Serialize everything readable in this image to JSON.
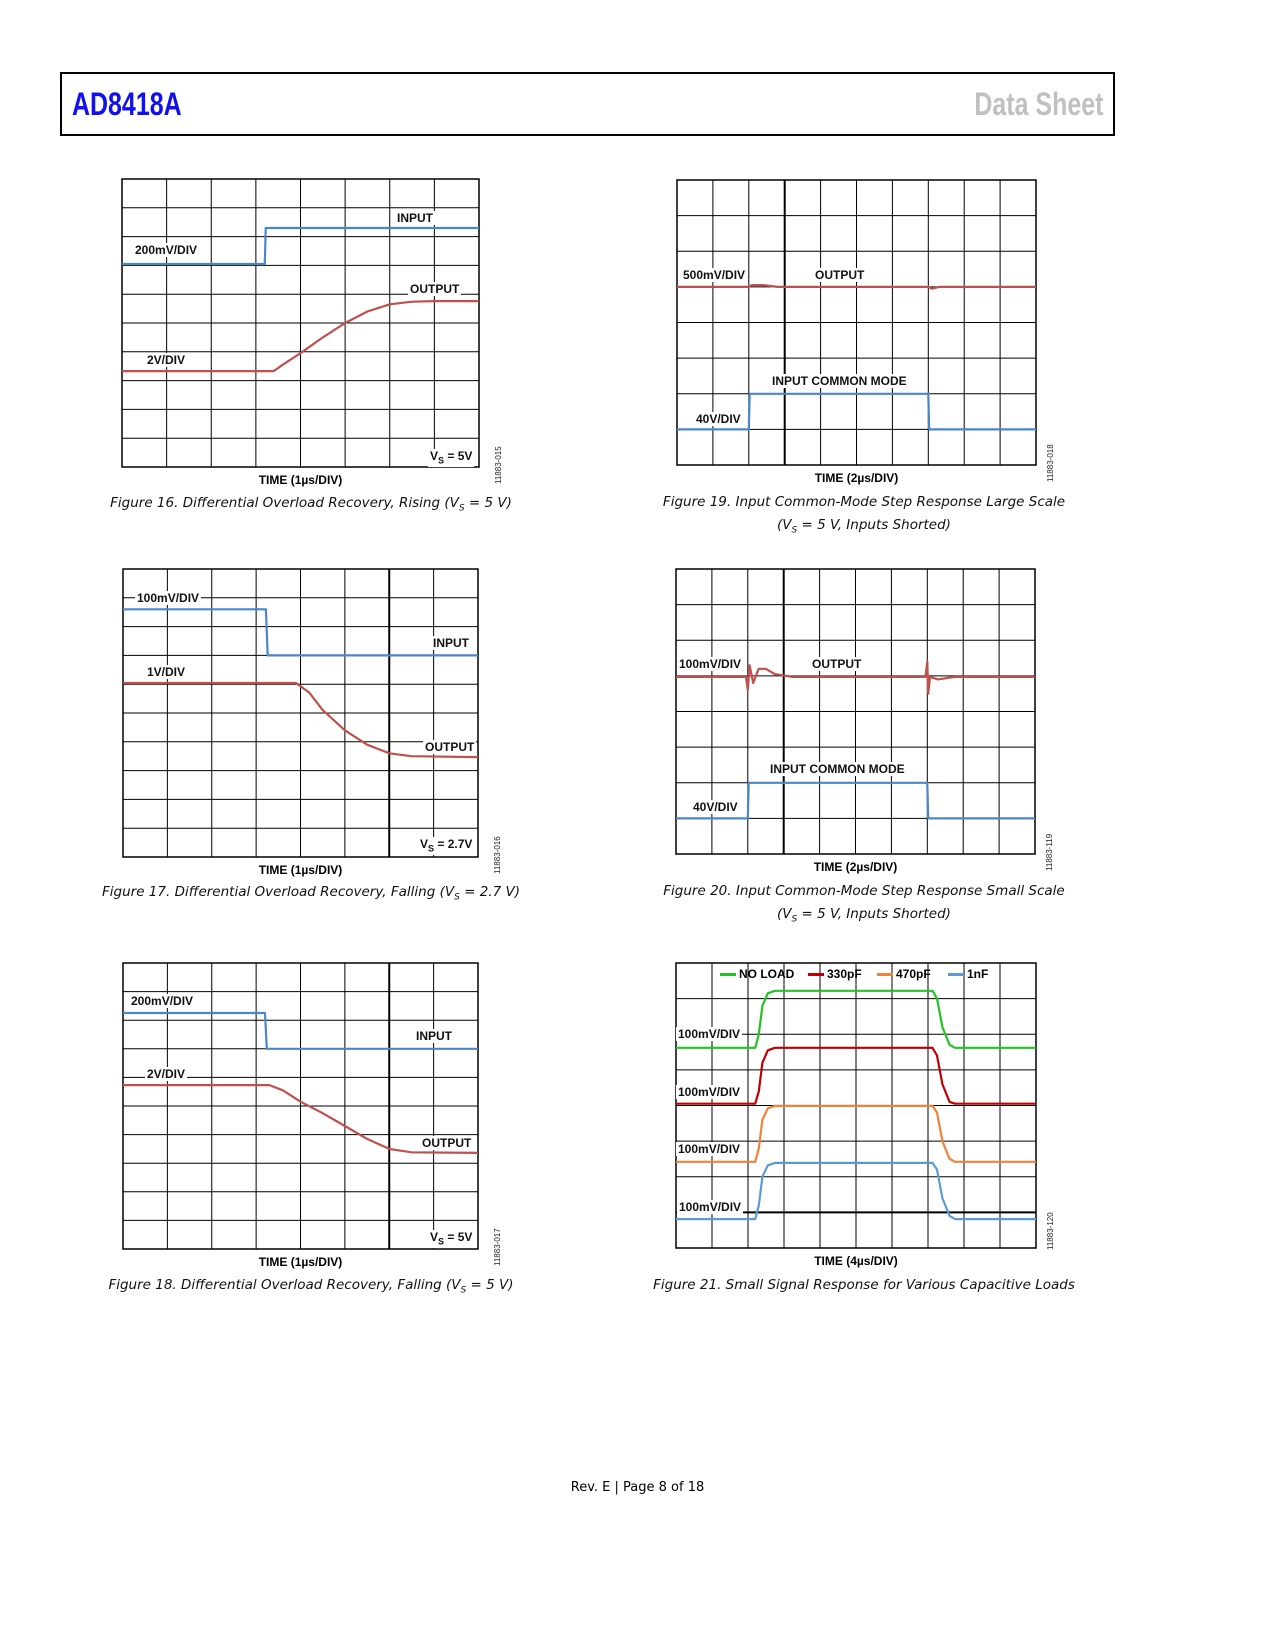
{
  "header": {
    "part_number": "AD8418A",
    "doc_type": "Data Sheet"
  },
  "footer": {
    "text": "Rev. E | Page 8 of 18"
  },
  "figures": [
    {
      "id": "11883-015",
      "caption": {
        "pre": "Figure 16. Differential Overload Recovery, Rising (V",
        "sub": "S",
        "post": " = 5 V)"
      },
      "caption2": null,
      "xlabel": "TIME (1µs/DIV)",
      "time_per_div_us": 1,
      "divisions": {
        "x": 8,
        "y": 10
      },
      "labels": [
        "INPUT",
        "200mV/DIV",
        "OUTPUT",
        "2V/DIV"
      ],
      "vs": {
        "main": "V",
        "sub": "S",
        "rest": " = 5V"
      },
      "traces": [
        {
          "name": "INPUT",
          "scale": "200mV/DIV",
          "color": "#4a86c8",
          "points": [
            [
              0,
              7.05
            ],
            [
              3.2,
              7.05
            ],
            [
              3.22,
              8.3
            ],
            [
              8,
              8.3
            ]
          ]
        },
        {
          "name": "OUTPUT",
          "scale": "2V/DIV",
          "color": "#c0504d",
          "points": [
            [
              0,
              3.33
            ],
            [
              3.4,
              3.33
            ],
            [
              3.6,
              3.55
            ],
            [
              4,
              3.95
            ],
            [
              4.5,
              4.5
            ],
            [
              5,
              5.0
            ],
            [
              5.5,
              5.4
            ],
            [
              6,
              5.65
            ],
            [
              6.5,
              5.74
            ],
            [
              7,
              5.76
            ],
            [
              8,
              5.76
            ]
          ]
        }
      ]
    },
    {
      "id": "11883-016",
      "caption": {
        "pre": "Figure 17. Differential Overload Recovery, Falling (V",
        "sub": "S",
        "post": " = 2.7 V)"
      },
      "caption2": null,
      "xlabel": "TIME (1µs/DIV)",
      "time_per_div_us": 1,
      "divisions": {
        "x": 8,
        "y": 10
      },
      "labels": [
        "100mV/DIV",
        "INPUT",
        "1V/DIV",
        "OUTPUT"
      ],
      "vs": {
        "main": "V",
        "sub": "S",
        "rest": " = 2.7V"
      },
      "traces": [
        {
          "name": "INPUT",
          "scale": "100mV/DIV",
          "color": "#4a86c8",
          "points": [
            [
              0,
              8.6
            ],
            [
              3.22,
              8.6
            ],
            [
              3.26,
              7.0
            ],
            [
              8,
              7.0
            ]
          ]
        },
        {
          "name": "OUTPUT",
          "scale": "1V/DIV",
          "color": "#c0504d",
          "points": [
            [
              0,
              6.04
            ],
            [
              3.9,
              6.04
            ],
            [
              4.2,
              5.7
            ],
            [
              4.5,
              5.1
            ],
            [
              5,
              4.4
            ],
            [
              5.5,
              3.9
            ],
            [
              6,
              3.6
            ],
            [
              6.5,
              3.5
            ],
            [
              8,
              3.47
            ]
          ]
        }
      ]
    },
    {
      "id": "11883-017",
      "caption": {
        "pre": "Figure 18. Differential Overload Recovery, Falling (V",
        "sub": "S",
        "post": " = 5 V)"
      },
      "caption2": null,
      "xlabel": "TIME (1µs/DIV)",
      "time_per_div_us": 1,
      "divisions": {
        "x": 8,
        "y": 10
      },
      "labels": [
        "200mV/DIV",
        "INPUT",
        "2V/DIV",
        "OUTPUT"
      ],
      "vs": {
        "main": "V",
        "sub": "S",
        "rest": " = 5V"
      },
      "traces": [
        {
          "name": "INPUT",
          "scale": "200mV/DIV",
          "color": "#4a86c8",
          "points": [
            [
              0,
              8.25
            ],
            [
              3.2,
              8.25
            ],
            [
              3.24,
              7.0
            ],
            [
              8,
              7.0
            ]
          ]
        },
        {
          "name": "OUTPUT",
          "scale": "2V/DIV",
          "color": "#c0504d",
          "points": [
            [
              0,
              5.73
            ],
            [
              3.3,
              5.73
            ],
            [
              3.6,
              5.55
            ],
            [
              4,
              5.15
            ],
            [
              4.5,
              4.75
            ],
            [
              5,
              4.3
            ],
            [
              5.5,
              3.85
            ],
            [
              6,
              3.5
            ],
            [
              6.5,
              3.38
            ],
            [
              8,
              3.36
            ]
          ]
        }
      ]
    },
    {
      "id": "11883-018",
      "caption": {
        "pre": "Figure 19. Input Common-Mode Step Response Large Scale",
        "sub": "",
        "post": ""
      },
      "caption2": {
        "pre": "(V",
        "sub": "S",
        "post": " = 5 V, Inputs Shorted)"
      },
      "xlabel": "TIME (2µs/DIV)",
      "time_per_div_us": 2,
      "divisions": {
        "x": 10,
        "y": 8
      },
      "labels": [
        "500mV/DIV",
        "OUTPUT",
        "INPUT COMMON MODE",
        "40V/DIV"
      ],
      "vs": null,
      "traces": [
        {
          "name": "OUTPUT",
          "scale": "500mV/DIV",
          "color": "#c0504d",
          "points": [
            [
              0,
              5.0
            ],
            [
              3.9,
              5.0
            ],
            [
              4.2,
              5.05
            ],
            [
              4.8,
              5.05
            ],
            [
              5.6,
              5.0
            ],
            [
              14,
              5.0
            ],
            [
              14.2,
              4.95
            ],
            [
              14.6,
              5.0
            ],
            [
              20,
              5.0
            ]
          ]
        },
        {
          "name": "INPUT COMMON MODE",
          "scale": "40V/DIV",
          "color": "#4a86c8",
          "points": [
            [
              0,
              1.0
            ],
            [
              4.0,
              1.0
            ],
            [
              4.05,
              2.0
            ],
            [
              14.0,
              2.0
            ],
            [
              14.05,
              1.0
            ],
            [
              20,
              1.0
            ]
          ]
        }
      ]
    },
    {
      "id": "11883-119",
      "caption": {
        "pre": "Figure 20. Input Common-Mode Step Response Small Scale",
        "sub": "",
        "post": ""
      },
      "caption2": {
        "pre": "(V",
        "sub": "S",
        "post": " = 5 V, Inputs Shorted)"
      },
      "xlabel": "TIME (2µs/DIV)",
      "time_per_div_us": 2,
      "divisions": {
        "x": 10,
        "y": 8
      },
      "labels": [
        "100mV/DIV",
        "OUTPUT",
        "INPUT COMMON MODE",
        "40V/DIV"
      ],
      "vs": null,
      "traces": [
        {
          "name": "OUTPUT",
          "scale": "100mV/DIV",
          "color": "#c0504d",
          "points": [
            [
              0,
              4.97
            ],
            [
              3.9,
              4.97
            ],
            [
              4.0,
              4.6
            ],
            [
              4.1,
              5.3
            ],
            [
              4.3,
              4.8
            ],
            [
              4.6,
              5.2
            ],
            [
              5.0,
              5.2
            ],
            [
              5.5,
              5.05
            ],
            [
              6.5,
              4.97
            ],
            [
              13.9,
              4.97
            ],
            [
              14.0,
              5.4
            ],
            [
              14.05,
              4.5
            ],
            [
              14.15,
              4.97
            ],
            [
              14.6,
              4.9
            ],
            [
              15.5,
              4.97
            ],
            [
              20,
              4.97
            ]
          ]
        },
        {
          "name": "INPUT COMMON MODE",
          "scale": "40V/DIV",
          "color": "#4a86c8",
          "points": [
            [
              0,
              1.0
            ],
            [
              4.0,
              1.0
            ],
            [
              4.05,
              2.0
            ],
            [
              14.0,
              2.0
            ],
            [
              14.05,
              1.0
            ],
            [
              20,
              1.0
            ]
          ]
        }
      ]
    },
    {
      "id": "11883-120",
      "caption": {
        "pre": "Figure 21. Small Signal Response for Various Capacitive Loads",
        "sub": "",
        "post": ""
      },
      "caption2": null,
      "xlabel": "TIME (4µs/DIV)",
      "time_per_div_us": 4,
      "divisions": {
        "x": 10,
        "y": 8
      },
      "labels": [
        "100mV/DIV",
        "100mV/DIV",
        "100mV/DIV",
        "100mV/DIV"
      ],
      "vs": null,
      "legend": [
        "NO LOAD",
        "330pF",
        "470pF",
        "1nF"
      ],
      "traces": [
        {
          "name": "NO LOAD",
          "scale": "100mV/DIV",
          "color": "#22c322",
          "points": [
            [
              0,
              5.62
            ],
            [
              8.8,
              5.62
            ],
            [
              9.2,
              6.0
            ],
            [
              9.6,
              6.8
            ],
            [
              10.2,
              7.15
            ],
            [
              11,
              7.22
            ],
            [
              28.5,
              7.22
            ],
            [
              29,
              7.0
            ],
            [
              29.6,
              6.2
            ],
            [
              30.4,
              5.7
            ],
            [
              31,
              5.62
            ],
            [
              40,
              5.62
            ]
          ]
        },
        {
          "name": "330pF",
          "scale": "100mV/DIV",
          "color": "#c00000",
          "points": [
            [
              0,
              4.05
            ],
            [
              8.8,
              4.05
            ],
            [
              9.2,
              4.4
            ],
            [
              9.6,
              5.2
            ],
            [
              10.2,
              5.55
            ],
            [
              11,
              5.62
            ],
            [
              28.5,
              5.62
            ],
            [
              29,
              5.4
            ],
            [
              29.6,
              4.6
            ],
            [
              30.4,
              4.1
            ],
            [
              31,
              4.05
            ],
            [
              40,
              4.05
            ]
          ]
        },
        {
          "name": "470pF",
          "scale": "100mV/DIV",
          "color": "#f0823a",
          "points": [
            [
              0,
              2.42
            ],
            [
              8.8,
              2.42
            ],
            [
              9.2,
              2.8
            ],
            [
              9.6,
              3.6
            ],
            [
              10.2,
              3.92
            ],
            [
              11,
              3.99
            ],
            [
              28.5,
              3.99
            ],
            [
              29,
              3.8
            ],
            [
              29.6,
              3.0
            ],
            [
              30.4,
              2.5
            ],
            [
              31,
              2.42
            ],
            [
              40,
              2.42
            ]
          ]
        },
        {
          "name": "1nF",
          "scale": "100mV/DIV",
          "color": "#5b9bd5",
          "points": [
            [
              0,
              0.81
            ],
            [
              8.8,
              0.81
            ],
            [
              9.2,
              1.2
            ],
            [
              9.6,
              2.0
            ],
            [
              10.2,
              2.32
            ],
            [
              11,
              2.39
            ],
            [
              28.5,
              2.39
            ],
            [
              29,
              2.2
            ],
            [
              29.6,
              1.4
            ],
            [
              30.4,
              0.9
            ],
            [
              31,
              0.81
            ],
            [
              40,
              0.81
            ]
          ]
        }
      ]
    }
  ]
}
